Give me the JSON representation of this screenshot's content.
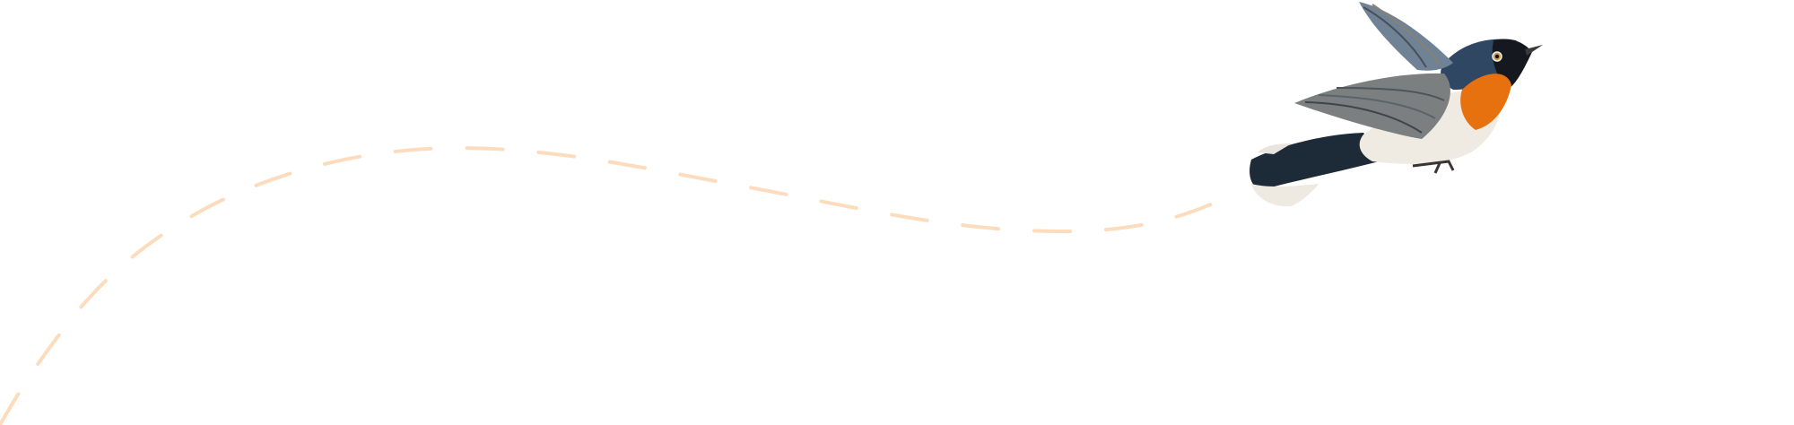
{
  "illustration": {
    "subject": "bird-in-flight",
    "colors": {
      "flight_path": "#fcdcbd",
      "head_back": "#2f4763",
      "throat": "#e8710f",
      "belly": "#efebe3",
      "wing": "#7c7f80",
      "tail": "#1d2a38"
    }
  }
}
